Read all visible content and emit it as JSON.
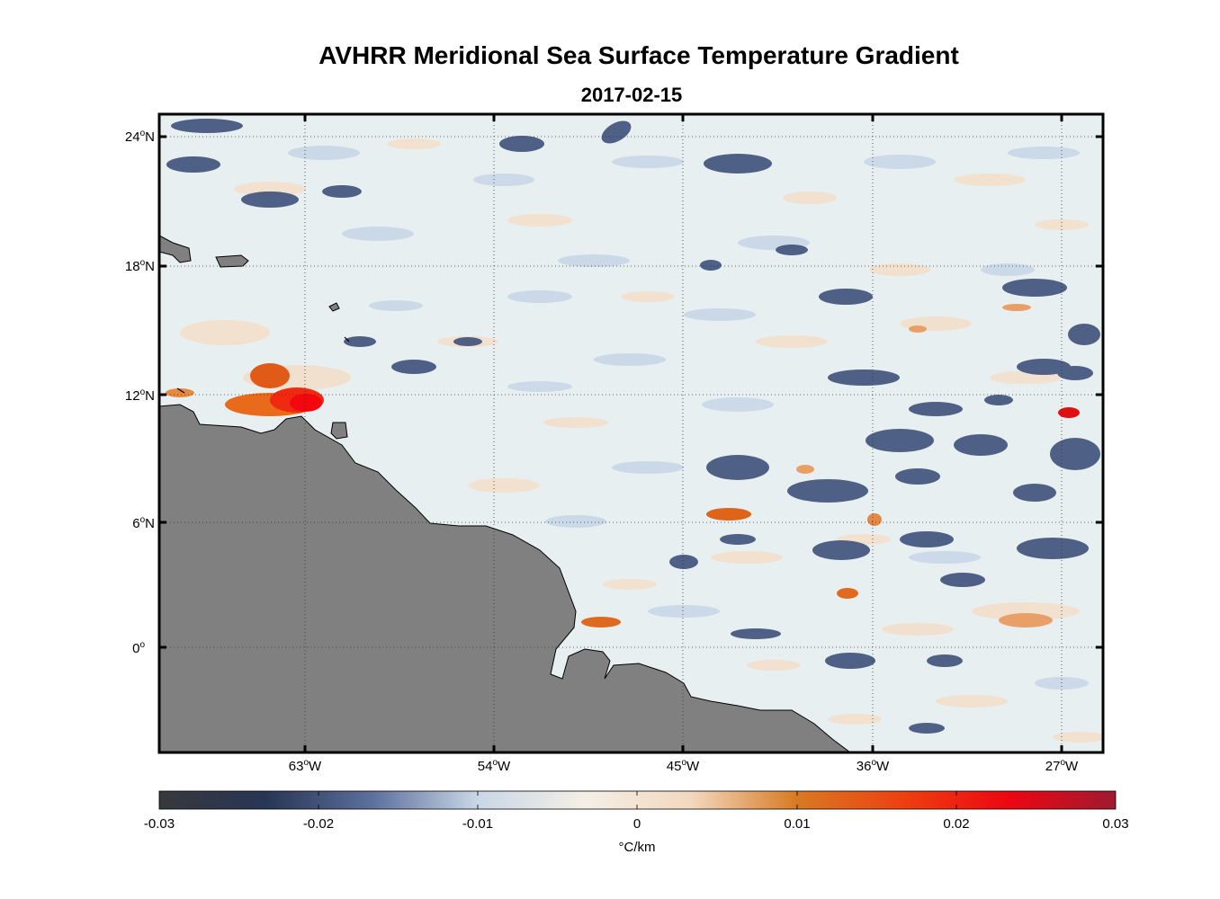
{
  "title": "AVHRR Meridional Sea Surface Temperature Gradient",
  "subtitle": "2017-02-15",
  "map": {
    "lat_ticks": [
      {
        "deg": "24",
        "suffix": "N"
      },
      {
        "deg": "18",
        "suffix": "N"
      },
      {
        "deg": "12",
        "suffix": "N"
      },
      {
        "deg": "6",
        "suffix": "N"
      },
      {
        "deg": "0",
        "suffix": ""
      }
    ],
    "lon_ticks": [
      {
        "deg": "63",
        "suffix": "W"
      },
      {
        "deg": "54",
        "suffix": "W"
      },
      {
        "deg": "45",
        "suffix": "W"
      },
      {
        "deg": "36",
        "suffix": "W"
      },
      {
        "deg": "27",
        "suffix": "W"
      }
    ],
    "land_color": "#808080",
    "ocean_color": "#e6eeee"
  },
  "colorbar": {
    "ticks": [
      "-0.03",
      "-0.02",
      "-0.01",
      "0",
      "0.01",
      "0.02",
      "0.03"
    ],
    "unit": "°C/km",
    "colors": [
      "#37383c",
      "#283654",
      "#5c6f9d",
      "#c9d7e6",
      "#f4efe6",
      "#f3d8bf",
      "#d87a23",
      "#ee4010",
      "#ed0612",
      "#9f1a31"
    ]
  }
}
